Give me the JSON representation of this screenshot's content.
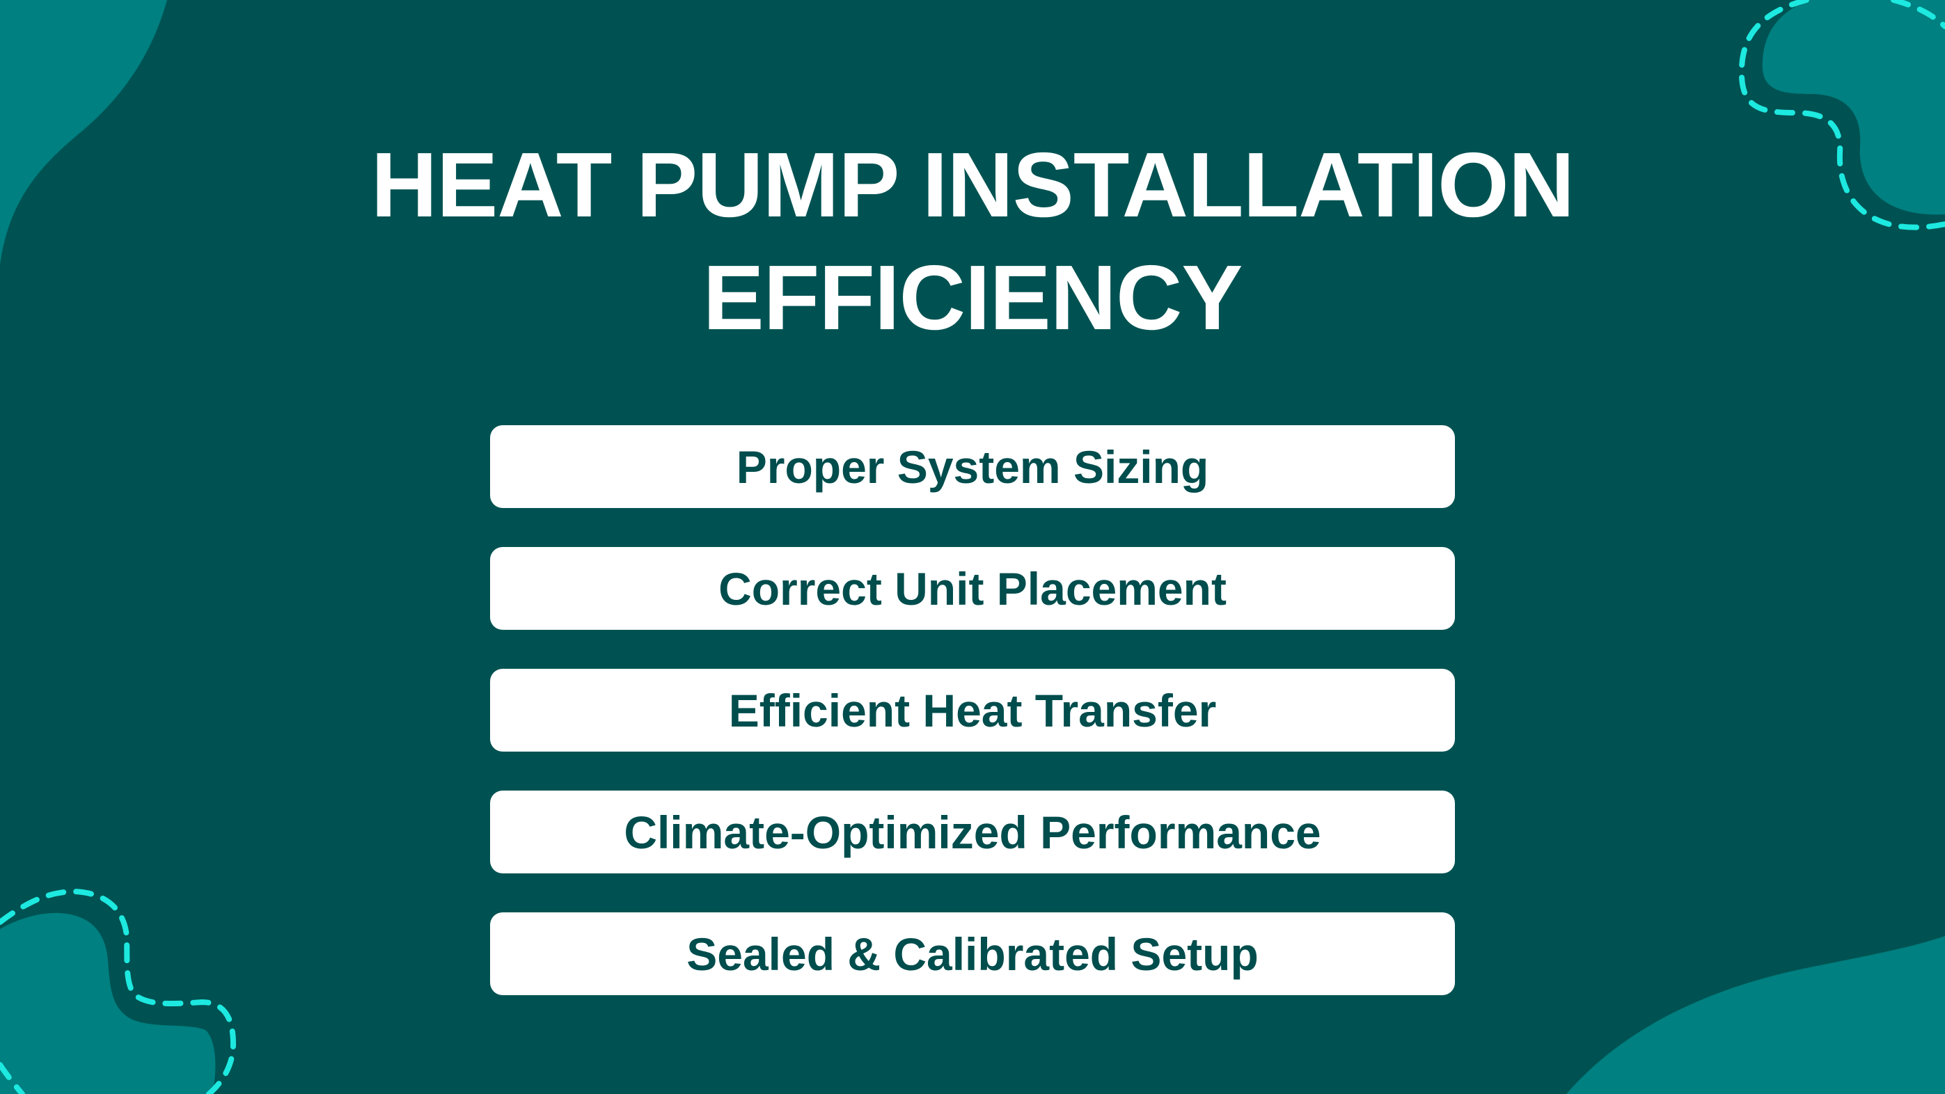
{
  "title": {
    "line1": "HEAT PUMP INSTALLATION",
    "line2": "EFFICIENCY"
  },
  "items": [
    {
      "label": "Proper System Sizing"
    },
    {
      "label": "Correct Unit Placement"
    },
    {
      "label": "Efficient Heat Transfer"
    },
    {
      "label": "Climate-Optimized Performance"
    },
    {
      "label": "Sealed & Calibrated Setup"
    }
  ],
  "colors": {
    "background": "#005252",
    "blob": "#008080",
    "dash": "#1de9e0",
    "card": "#ffffff",
    "card_text": "#004d4d",
    "title": "#ffffff"
  }
}
